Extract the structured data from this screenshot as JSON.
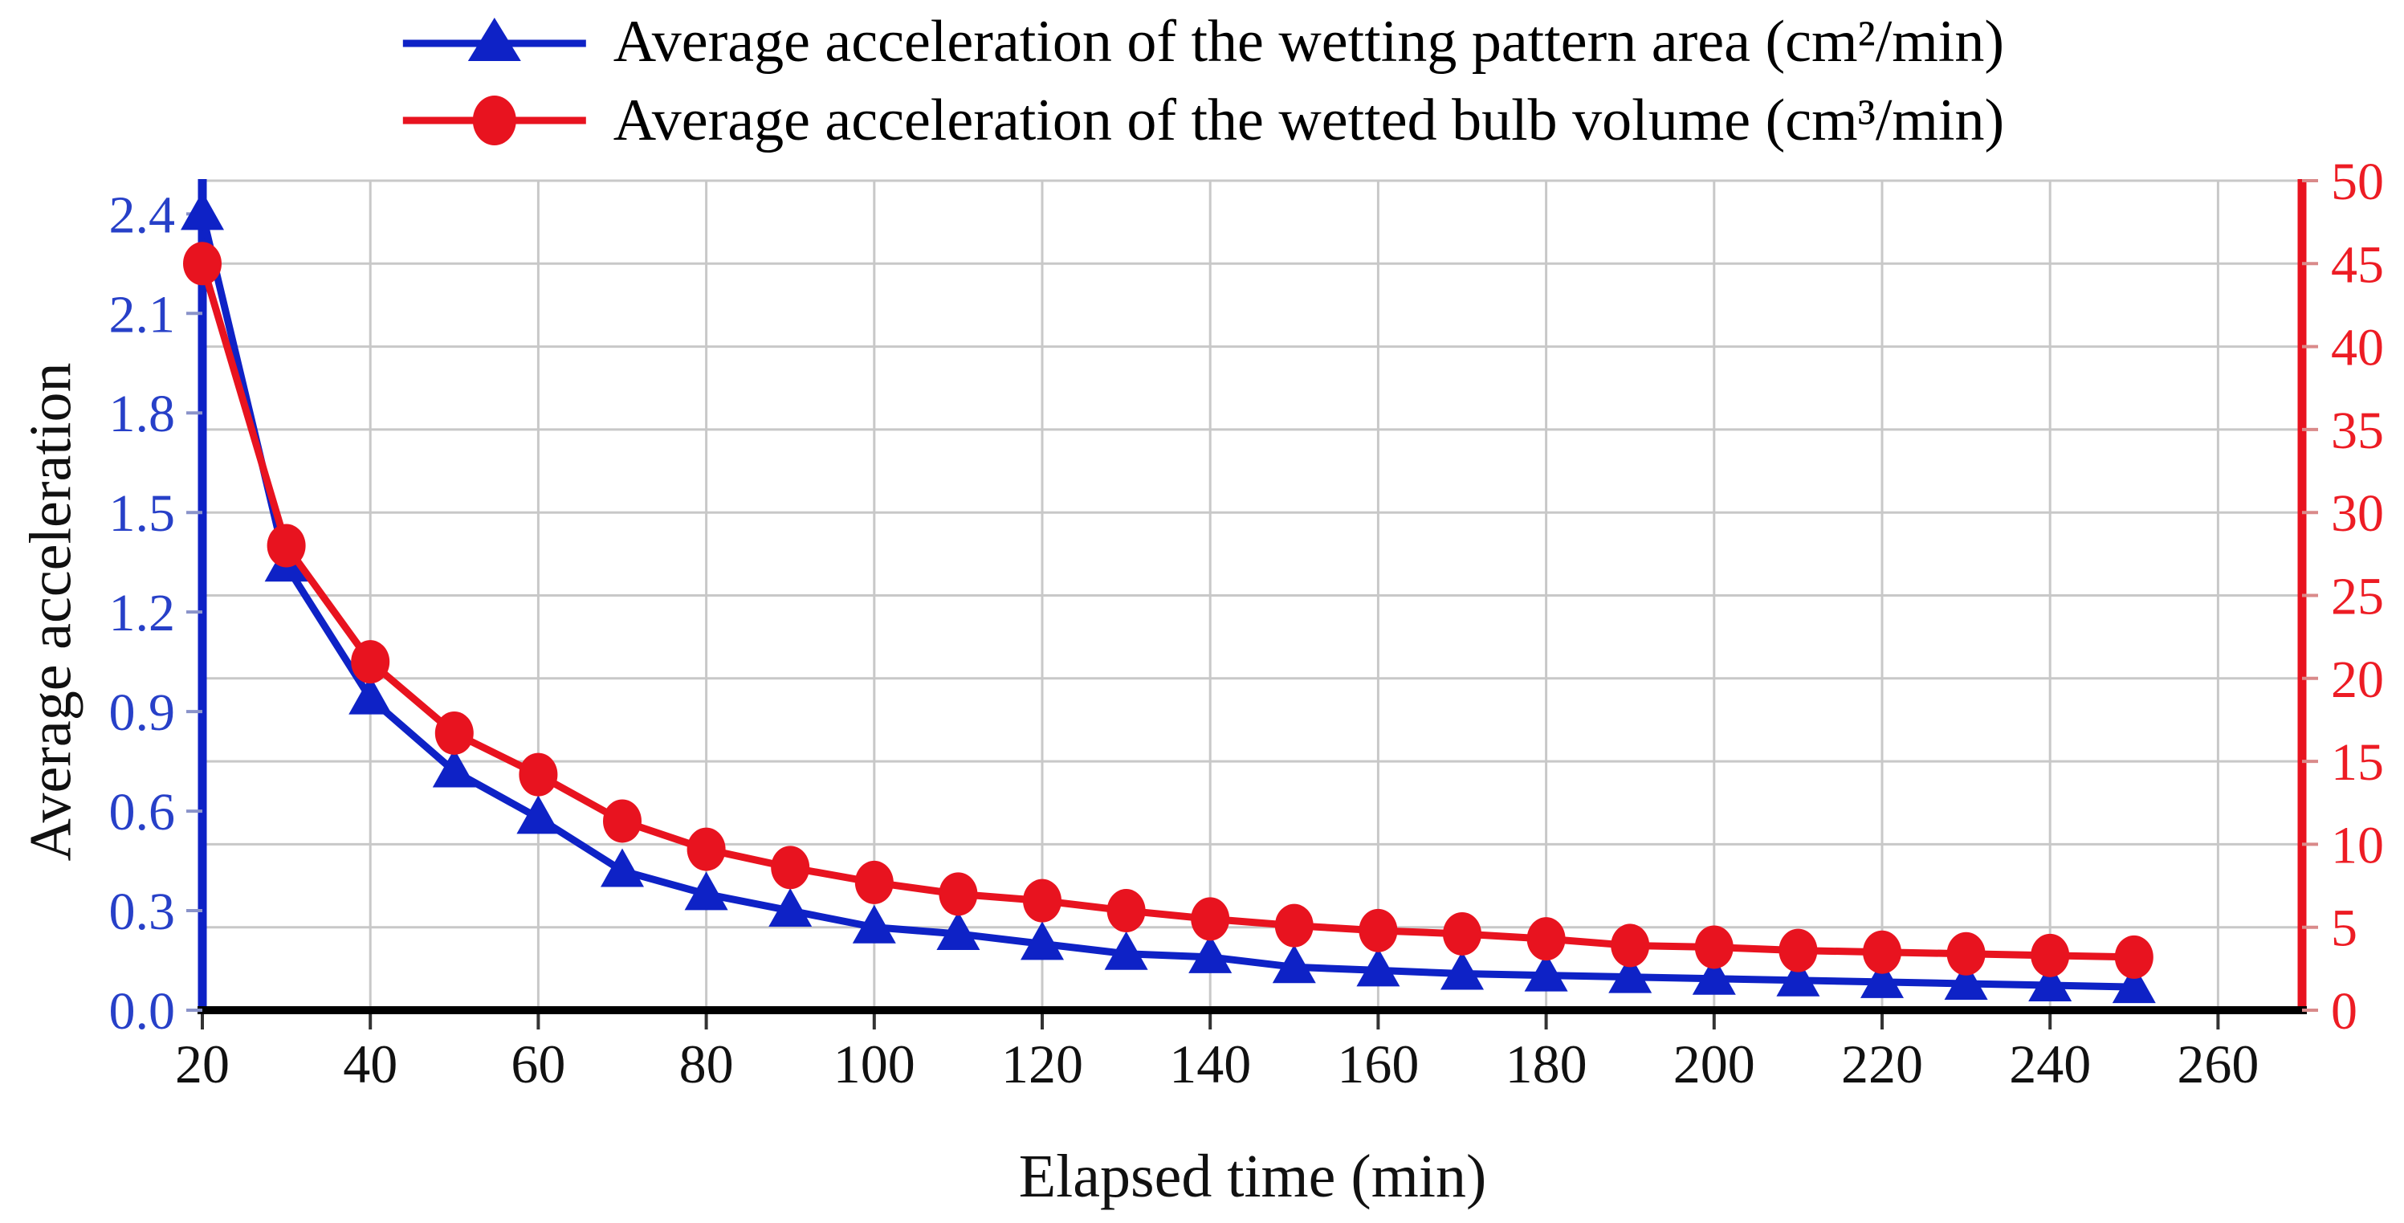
{
  "legend": {
    "items": [
      {
        "label": "Average acceleration of the wetting pattern area (cm²/min)",
        "marker": "triangle",
        "color": "#0E22C6"
      },
      {
        "label": "Average acceleration of the wetted bulb volume (cm³/min)",
        "marker": "circle",
        "color": "#E8131F"
      }
    ]
  },
  "titles": {
    "y_left": "Average acceleration",
    "x": "Elapsed time (min)"
  },
  "chart_data": {
    "type": "line",
    "title": "",
    "xlabel": "Elapsed time (min)",
    "ylabel": "Average acceleration",
    "legend_position": "top",
    "grid": "horizontal gridlines every 5 units of right axis; vertical gridlines every 20 min",
    "x": [
      20,
      30,
      40,
      50,
      60,
      70,
      80,
      90,
      100,
      110,
      120,
      130,
      140,
      150,
      160,
      170,
      180,
      190,
      200,
      210,
      220,
      230,
      240,
      250
    ],
    "series": [
      {
        "name": "Average acceleration of the wetting pattern area (cm²/min)",
        "axis": "left",
        "marker": "triangle",
        "color": "#0E22C6",
        "values": [
          2.4,
          1.34,
          0.94,
          0.72,
          0.58,
          0.42,
          0.35,
          0.3,
          0.25,
          0.23,
          0.2,
          0.17,
          0.16,
          0.13,
          0.12,
          0.11,
          0.105,
          0.1,
          0.095,
          0.09,
          0.085,
          0.08,
          0.075,
          0.07
        ]
      },
      {
        "name": "Average acceleration of the wetted bulb volume (cm³/min)",
        "axis": "right",
        "marker": "circle",
        "color": "#E8131F",
        "values": [
          45,
          28,
          21,
          16.7,
          14.2,
          11.4,
          9.7,
          8.6,
          7.7,
          7.0,
          6.6,
          6.0,
          5.5,
          5.1,
          4.8,
          4.6,
          4.3,
          3.9,
          3.8,
          3.6,
          3.5,
          3.4,
          3.3,
          3.2
        ]
      }
    ],
    "x_axis": {
      "min": 20,
      "max": 270,
      "label_color": "#111111",
      "ticks": [
        {
          "v": 20,
          "label": "20"
        },
        {
          "v": 40,
          "label": "40"
        },
        {
          "v": 60,
          "label": "60"
        },
        {
          "v": 80,
          "label": "80"
        },
        {
          "v": 100,
          "label": "100"
        },
        {
          "v": 120,
          "label": "120"
        },
        {
          "v": 140,
          "label": "140"
        },
        {
          "v": 160,
          "label": "160"
        },
        {
          "v": 180,
          "label": "180"
        },
        {
          "v": 200,
          "label": "200"
        },
        {
          "v": 220,
          "label": "220"
        },
        {
          "v": 240,
          "label": "240"
        },
        {
          "v": 260,
          "label": "260"
        }
      ]
    },
    "left_axis": {
      "min": 0,
      "max": 2.5,
      "line_color": "#0E22C6",
      "label_color": "#2740C8",
      "ticks": [
        {
          "v": 0.0,
          "label": "0.0"
        },
        {
          "v": 0.3,
          "label": "0.3"
        },
        {
          "v": 0.6,
          "label": "0.6"
        },
        {
          "v": 0.9,
          "label": "0.9"
        },
        {
          "v": 1.2,
          "label": "1.2"
        },
        {
          "v": 1.5,
          "label": "1.5"
        },
        {
          "v": 1.8,
          "label": "1.8"
        },
        {
          "v": 2.1,
          "label": "2.1"
        },
        {
          "v": 2.4,
          "label": "2.4"
        }
      ]
    },
    "right_axis": {
      "min": 0,
      "max": 50,
      "line_color": "#E8131F",
      "label_color": "#ED1C24",
      "ticks": [
        {
          "v": 0,
          "label": "0"
        },
        {
          "v": 5,
          "label": "5"
        },
        {
          "v": 10,
          "label": "10"
        },
        {
          "v": 15,
          "label": "15"
        },
        {
          "v": 20,
          "label": "20"
        },
        {
          "v": 25,
          "label": "25"
        },
        {
          "v": 30,
          "label": "30"
        },
        {
          "v": 35,
          "label": "35"
        },
        {
          "v": 40,
          "label": "40"
        },
        {
          "v": 45,
          "label": "45"
        },
        {
          "v": 50,
          "label": "50"
        }
      ]
    },
    "colors": {
      "gridline": "#C8C8C8",
      "bottom_axis": "#000000"
    }
  }
}
